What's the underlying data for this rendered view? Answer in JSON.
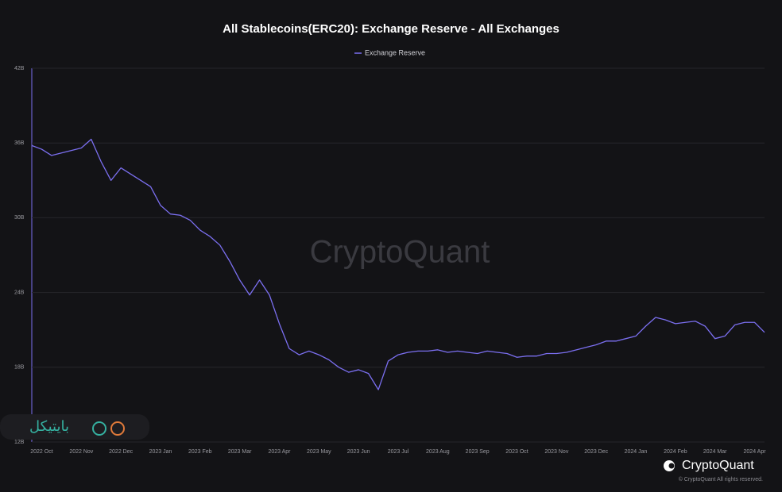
{
  "chart_data": {
    "type": "line",
    "title": "All Stablecoins(ERC20): Exchange Reserve - All Exchanges",
    "categories": [
      null,
      "2022 Oct",
      null,
      null,
      null,
      "2022 Nov",
      null,
      null,
      null,
      "2022 Dec",
      null,
      null,
      null,
      "2023 Jan",
      null,
      null,
      null,
      "2023 Feb",
      null,
      null,
      null,
      "2023 Mar",
      null,
      null,
      null,
      "2023 Apr",
      null,
      null,
      null,
      "2023 May",
      null,
      null,
      null,
      "2023 Jun",
      null,
      null,
      null,
      "2023 Jul",
      null,
      null,
      null,
      "2023 Aug",
      null,
      null,
      null,
      "2023 Sep",
      null,
      null,
      null,
      "2023 Oct",
      null,
      null,
      null,
      "2023 Nov",
      null,
      null,
      null,
      "2023 Dec",
      null,
      null,
      null,
      "2024 Jan",
      null,
      null,
      null,
      "2024 Feb",
      null,
      null,
      null,
      "2024 Mar",
      null,
      null,
      null,
      "2024 Apr",
      null
    ],
    "series": [
      {
        "name": "Exchange Reserve",
        "color": "#7b6ff0",
        "values": [
          35.8,
          35.5,
          35.0,
          35.2,
          35.4,
          35.6,
          36.3,
          34.5,
          33.0,
          34.0,
          33.5,
          33.0,
          32.5,
          31.0,
          30.3,
          30.2,
          29.8,
          29.0,
          28.5,
          27.8,
          26.5,
          25.0,
          23.8,
          25.0,
          23.8,
          21.5,
          19.5,
          19.0,
          19.3,
          19.0,
          18.6,
          18.0,
          17.6,
          17.8,
          17.5,
          16.2,
          18.5,
          19.0,
          19.2,
          19.3,
          19.3,
          19.4,
          19.2,
          19.3,
          19.2,
          19.1,
          19.3,
          19.2,
          19.1,
          18.8,
          18.9,
          18.9,
          19.1,
          19.1,
          19.2,
          19.4,
          19.6,
          19.8,
          20.1,
          20.1,
          20.3,
          20.5,
          21.3,
          22.0,
          21.8,
          21.5,
          21.6,
          21.7,
          21.3,
          20.3,
          20.5,
          21.4,
          21.6,
          21.6,
          20.8
        ]
      }
    ],
    "ylim": [
      12,
      42
    ],
    "yticks": [
      {
        "value": 12,
        "label": "12B"
      },
      {
        "value": 18,
        "label": "18B"
      },
      {
        "value": 24,
        "label": "24B"
      },
      {
        "value": 30,
        "label": "30B"
      },
      {
        "value": 36,
        "label": "36B"
      },
      {
        "value": 42,
        "label": "42B"
      }
    ],
    "grid": true,
    "watermark": "CryptoQuant",
    "brand": "CryptoQuant",
    "copyright": "© CryptoQuant All rights reserved.",
    "overlay_logo": "بایتیکل"
  }
}
